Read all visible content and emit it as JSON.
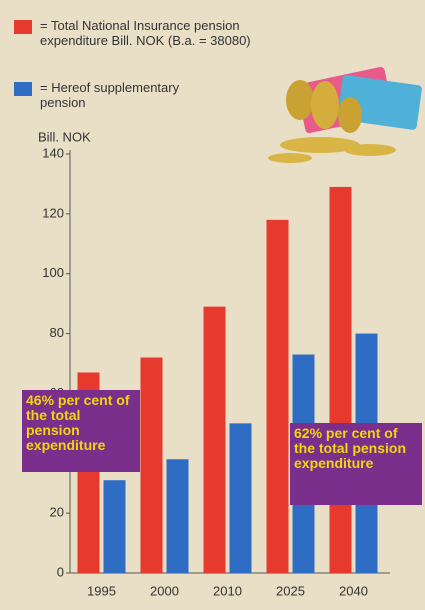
{
  "chart_data": {
    "type": "bar",
    "y_label": "Bill. NOK",
    "categories": [
      "1995",
      "2000",
      "2010",
      "2025",
      "2040"
    ],
    "series": [
      {
        "name": "= Total National Insurance pension expenditure Bill. NOK (B.a. = 38080)",
        "color": "#e63a2e",
        "values": [
          67,
          72,
          89,
          118,
          129
        ]
      },
      {
        "name": "= Hereof supplementary pension",
        "color": "#2f6cc4",
        "values": [
          31,
          38,
          50,
          73,
          80
        ]
      }
    ],
    "ylim": [
      0,
      140
    ],
    "yticks": [
      0,
      20,
      40,
      60,
      80,
      100,
      120,
      140
    ],
    "grid": false,
    "legend": "top-left",
    "annotations": [
      "46% per cent of the total pension expenditure",
      "62% per cent of the total pension expenditure"
    ]
  }
}
